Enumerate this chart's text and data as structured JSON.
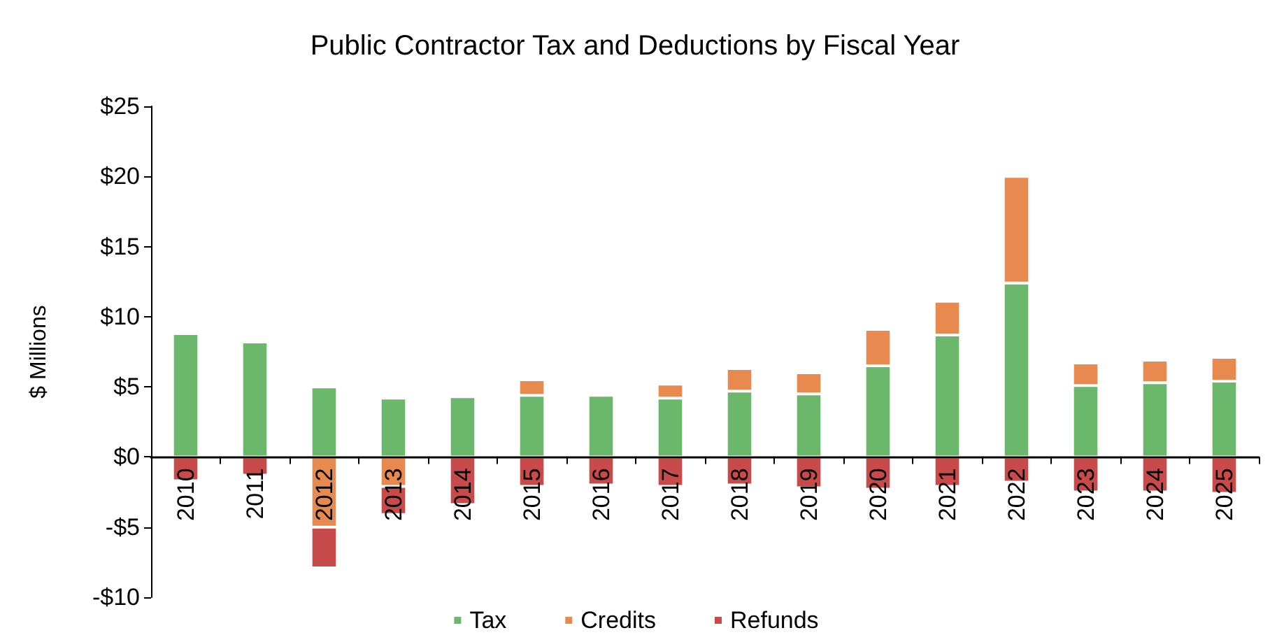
{
  "chart_data": {
    "type": "bar",
    "title": "Public Contractor Tax and Deductions by Fiscal Year",
    "ylabel": "$ Millions",
    "categories": [
      "2010",
      "2011",
      "2012",
      "2013",
      "2014",
      "2015",
      "2016",
      "2017",
      "2018",
      "2019",
      "2020",
      "2021",
      "2022",
      "2023",
      "2024",
      "2025"
    ],
    "stacked": true,
    "series": [
      {
        "name": "Tax",
        "color": "#6bb76b",
        "values": [
          8.8,
          8.2,
          5.0,
          4.2,
          4.3,
          4.4,
          4.4,
          4.2,
          4.7,
          4.5,
          6.5,
          8.7,
          12.4,
          5.1,
          5.3,
          5.4
        ]
      },
      {
        "name": "Credits",
        "color": "#e88a50",
        "values": [
          null,
          null,
          -5.0,
          -2.1,
          null,
          1.1,
          null,
          1.0,
          1.6,
          1.5,
          2.6,
          2.4,
          7.6,
          1.6,
          1.6,
          1.7
        ]
      },
      {
        "name": "Refunds",
        "color": "#c84a4a",
        "values": [
          -1.7,
          -1.3,
          -2.9,
          -2.0,
          -3.4,
          -2.1,
          -2.0,
          -2.1,
          -2.0,
          -2.2,
          -2.3,
          -2.1,
          -1.8,
          -2.5,
          -2.5,
          -2.6
        ]
      }
    ],
    "ylim": [
      -10,
      25
    ],
    "yticks": [
      {
        "value": -10,
        "label": "-$10"
      },
      {
        "value": -5,
        "label": "-$5"
      },
      {
        "value": 0,
        "label": "$0"
      },
      {
        "value": 5,
        "label": "$5"
      },
      {
        "value": 10,
        "label": "$10"
      },
      {
        "value": 15,
        "label": "$15"
      },
      {
        "value": 20,
        "label": "$20"
      },
      {
        "value": 25,
        "label": "$25"
      }
    ],
    "grid": false,
    "legend": "bottom"
  }
}
